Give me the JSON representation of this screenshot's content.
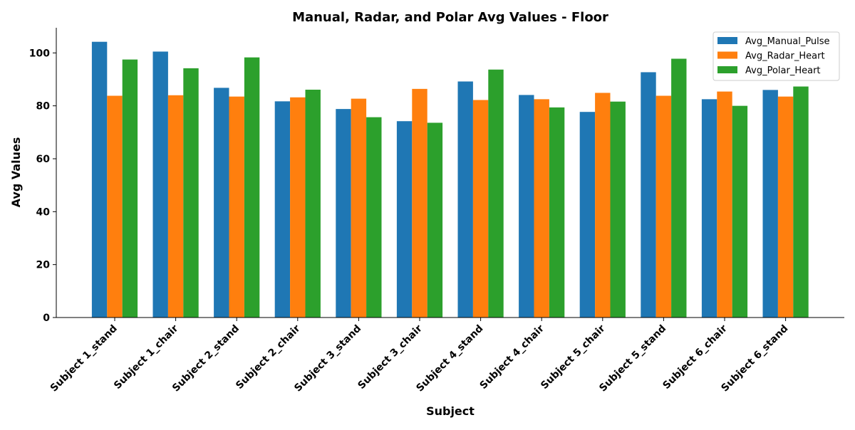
{
  "chart_data": {
    "type": "bar",
    "title": "Manual, Radar, and Polar Avg Values - Floor",
    "xlabel": "Subject",
    "ylabel": "Avg Values",
    "ylim": [
      0,
      109.5
    ],
    "yticks": [
      0,
      20,
      40,
      60,
      80,
      100
    ],
    "grid": false,
    "legend_position": "top-right",
    "categories": [
      "Subject 1_stand",
      "Subject 1_chair",
      "Subject 2_stand",
      "Subject 2_chair",
      "Subject 3_stand",
      "Subject 3_chair",
      "Subject 4_stand",
      "Subject 4_chair",
      "Subject 5_chair",
      "Subject 5_stand",
      "Subject 6_chair",
      "Subject 6_stand"
    ],
    "series": [
      {
        "name": "Avg_Manual_Pulse",
        "color": "#1f77b4",
        "values": [
          104.2,
          100.5,
          86.8,
          81.7,
          78.8,
          74.2,
          89.2,
          84.1,
          77.7,
          92.7,
          82.5,
          86.0
        ]
      },
      {
        "name": "Avg_Radar_Heart",
        "color": "#ff7f0e",
        "values": [
          83.8,
          84.0,
          83.5,
          83.2,
          82.7,
          86.4,
          82.2,
          82.5,
          84.9,
          83.8,
          85.4,
          83.5
        ]
      },
      {
        "name": "Avg_Polar_Heart",
        "color": "#2ca02c",
        "values": [
          97.5,
          94.2,
          98.3,
          86.1,
          75.7,
          73.6,
          93.7,
          79.4,
          81.6,
          97.8,
          80.0,
          87.3
        ]
      }
    ]
  }
}
